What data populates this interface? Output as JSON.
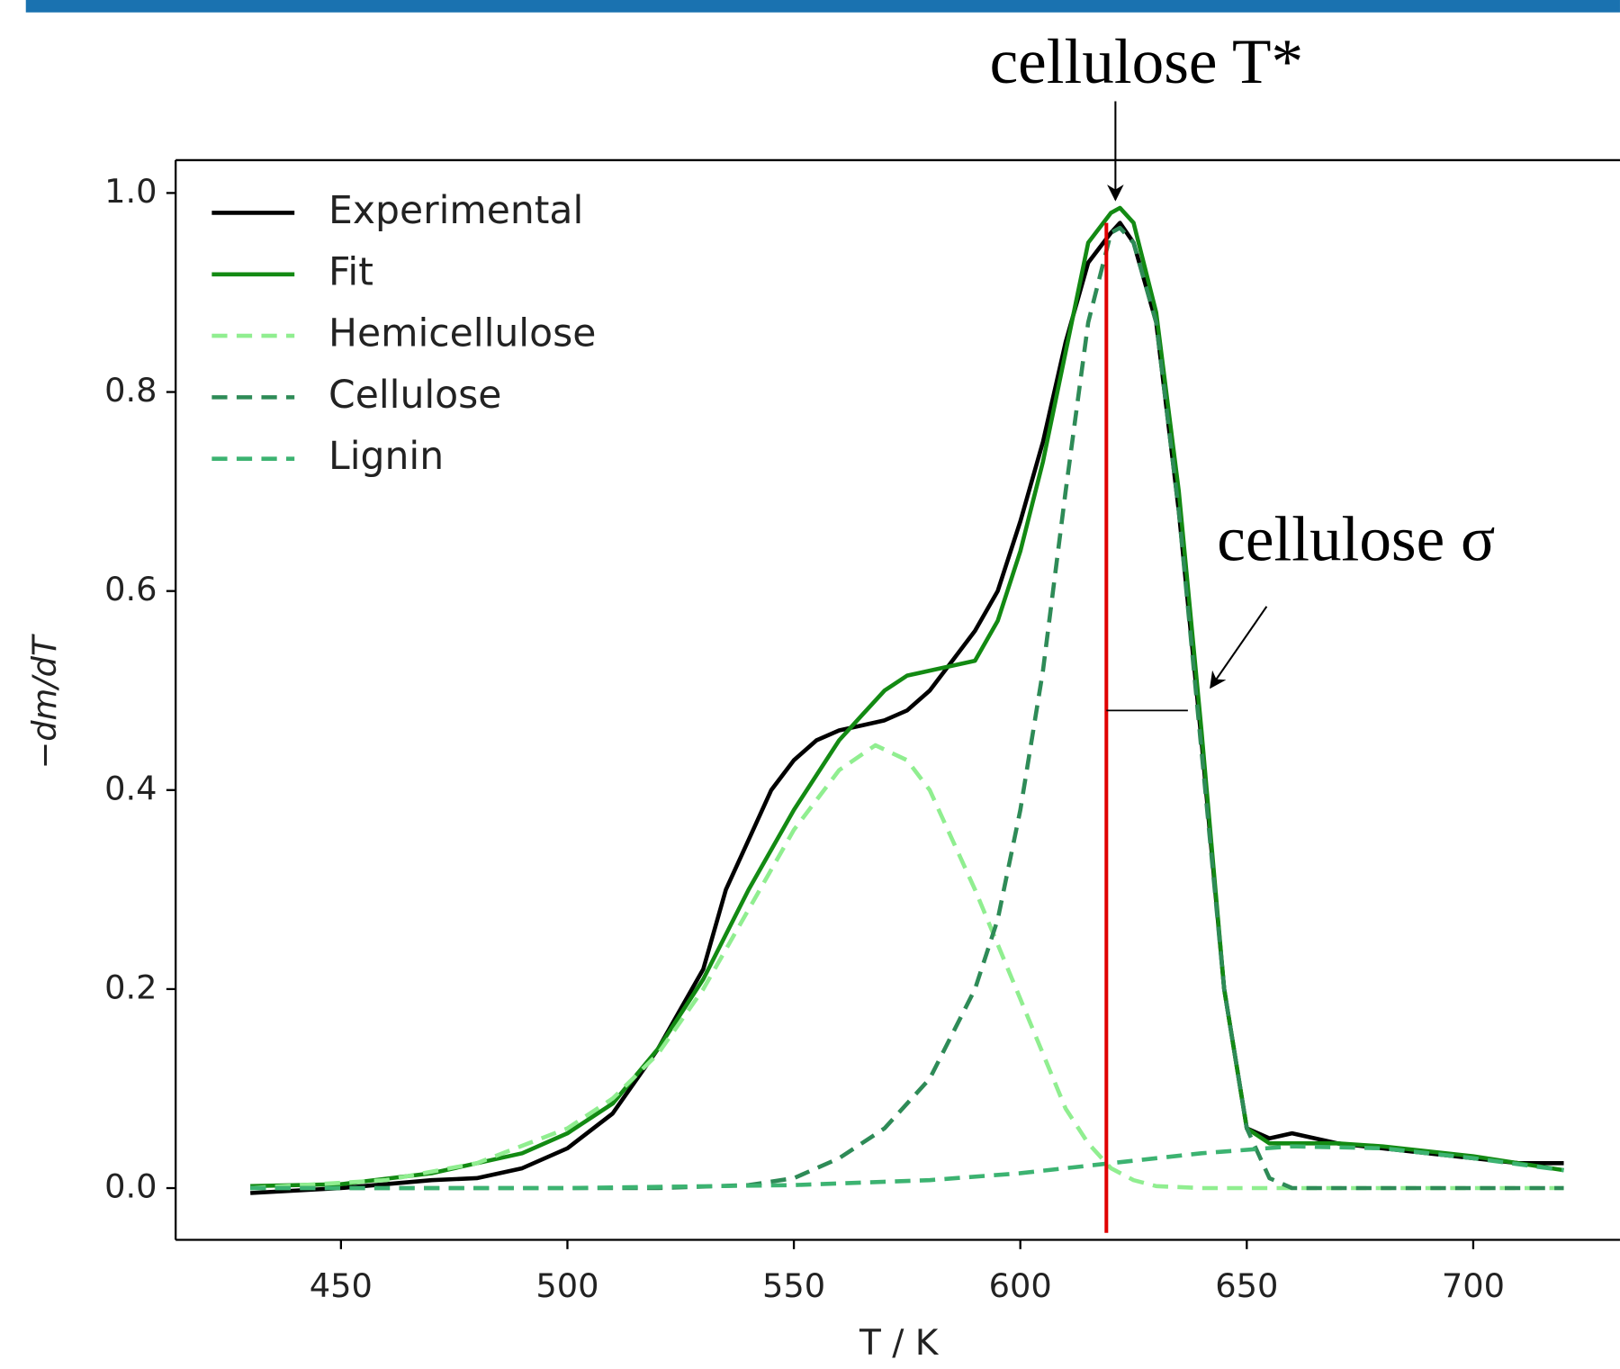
{
  "chart_data": {
    "type": "line",
    "xlabel": "T / K",
    "ylabel": "−dm/dT",
    "xlim": [
      413.5,
      732.4
    ],
    "ylim": [
      -0.052,
      1.033
    ],
    "xticks": [
      450,
      500,
      550,
      600,
      650,
      700
    ],
    "yticks": [
      {
        "value": 0.0,
        "label": "0.0"
      },
      0.2,
      0.4,
      0.6,
      0.8,
      {
        "value": 1.0,
        "label": "1.0"
      }
    ],
    "legend": "upper left",
    "series": [
      {
        "name": "Experimental",
        "color": "#000000",
        "dash": false,
        "x": [
          430,
          450,
          470,
          480,
          490,
          500,
          510,
          520,
          530,
          535,
          540,
          545,
          550,
          555,
          560,
          565,
          570,
          575,
          580,
          585,
          590,
          595,
          600,
          605,
          610,
          615,
          620,
          622,
          625,
          630,
          635,
          640,
          645,
          650,
          655,
          660,
          670,
          680,
          690,
          700,
          710,
          720
        ],
        "values": [
          -0.005,
          0,
          0.008,
          0.01,
          0.02,
          0.04,
          0.075,
          0.14,
          0.22,
          0.3,
          0.35,
          0.4,
          0.43,
          0.45,
          0.46,
          0.465,
          0.47,
          0.48,
          0.5,
          0.53,
          0.56,
          0.6,
          0.67,
          0.75,
          0.85,
          0.93,
          0.96,
          0.97,
          0.95,
          0.87,
          0.68,
          0.45,
          0.2,
          0.06,
          0.05,
          0.055,
          0.045,
          0.04,
          0.035,
          0.03,
          0.025,
          0.025
        ]
      },
      {
        "name": "Fit",
        "color": "#138a13",
        "dash": false,
        "x": [
          430,
          450,
          470,
          490,
          500,
          510,
          520,
          530,
          540,
          550,
          560,
          565,
          570,
          575,
          580,
          585,
          590,
          595,
          600,
          605,
          610,
          615,
          620,
          622,
          625,
          630,
          635,
          640,
          645,
          650,
          655,
          660,
          670,
          680,
          690,
          700,
          710,
          720
        ],
        "values": [
          0.002,
          0.004,
          0.015,
          0.035,
          0.055,
          0.085,
          0.14,
          0.21,
          0.3,
          0.38,
          0.45,
          0.475,
          0.5,
          0.515,
          0.52,
          0.525,
          0.53,
          0.57,
          0.64,
          0.73,
          0.84,
          0.95,
          0.98,
          0.985,
          0.97,
          0.88,
          0.7,
          0.46,
          0.2,
          0.06,
          0.045,
          0.045,
          0.045,
          0.042,
          0.037,
          0.032,
          0.025,
          0.018
        ]
      },
      {
        "name": "Hemicellulose",
        "color": "#90ee90",
        "dash": true,
        "x": [
          430,
          460,
          480,
          500,
          510,
          520,
          530,
          540,
          550,
          560,
          568,
          575,
          580,
          590,
          600,
          610,
          615,
          620,
          625,
          630,
          640,
          660,
          720
        ],
        "values": [
          0,
          0.008,
          0.025,
          0.06,
          0.09,
          0.135,
          0.2,
          0.28,
          0.36,
          0.42,
          0.445,
          0.43,
          0.4,
          0.3,
          0.19,
          0.08,
          0.045,
          0.02,
          0.008,
          0.002,
          0,
          0,
          0
        ]
      },
      {
        "name": "Cellulose",
        "color": "#2e8b57",
        "dash": true,
        "x": [
          430,
          520,
          540,
          550,
          560,
          570,
          580,
          590,
          595,
          600,
          605,
          610,
          615,
          620,
          622,
          625,
          630,
          635,
          640,
          645,
          650,
          655,
          660,
          720
        ],
        "values": [
          0,
          0,
          0.003,
          0.01,
          0.03,
          0.06,
          0.11,
          0.2,
          0.27,
          0.38,
          0.52,
          0.7,
          0.87,
          0.96,
          0.965,
          0.95,
          0.87,
          0.68,
          0.44,
          0.2,
          0.06,
          0.01,
          0,
          0
        ]
      },
      {
        "name": "Lignin",
        "color": "#3cb371",
        "dash": true,
        "x": [
          430,
          500,
          550,
          580,
          600,
          620,
          640,
          660,
          680,
          700,
          720
        ],
        "values": [
          0,
          0,
          0.003,
          0.008,
          0.015,
          0.025,
          0.035,
          0.042,
          0.04,
          0.03,
          0.018
        ]
      }
    ],
    "reference_line": {
      "x": 619,
      "y": [
        -0.045,
        0.97
      ],
      "color": "#e00000"
    },
    "sigma_bar": {
      "x": [
        619,
        637
      ],
      "y": 0.48
    },
    "annotations": [
      {
        "text": "cellulose T*",
        "x": 621,
        "y": 0.985
      },
      {
        "text": "cellulose σ",
        "x": 637,
        "y": 0.5
      }
    ]
  }
}
